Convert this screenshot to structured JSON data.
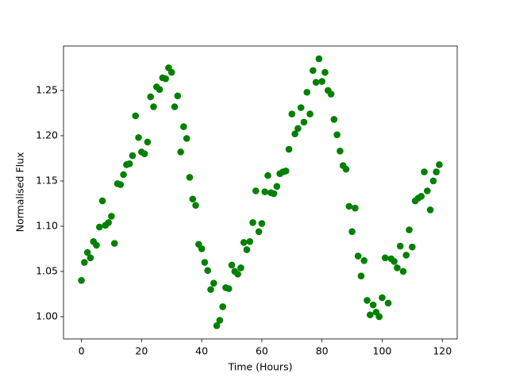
{
  "chart_data": {
    "type": "scatter",
    "x_label": "Time (Hours)",
    "y_label": "Normalised Flux",
    "x": [
      0,
      1,
      2,
      3,
      4,
      5,
      6,
      7,
      8,
      9,
      10,
      11,
      12,
      13,
      14,
      15,
      16,
      17,
      18,
      19,
      20,
      21,
      22,
      23,
      24,
      25,
      26,
      27,
      28,
      29,
      30,
      31,
      32,
      33,
      34,
      35,
      36,
      37,
      38,
      39,
      40,
      41,
      42,
      43,
      44,
      45,
      46,
      47,
      48,
      49,
      50,
      51,
      52,
      53,
      54,
      55,
      56,
      57,
      58,
      59,
      60,
      61,
      62,
      63,
      64,
      65,
      66,
      67,
      68,
      69,
      70,
      71,
      72,
      73,
      74,
      75,
      76,
      77,
      78,
      79,
      80,
      81,
      82,
      83,
      84,
      85,
      86,
      87,
      88,
      89,
      90,
      91,
      92,
      93,
      94,
      95,
      96,
      97,
      98,
      99,
      100,
      101,
      102,
      103,
      104,
      105,
      106,
      107,
      108,
      109,
      110,
      111,
      112,
      113,
      114,
      115,
      116,
      117,
      118,
      119
    ],
    "series": [
      {
        "color": "#008000",
        "values": [
          1.04,
          1.06,
          1.071,
          1.065,
          1.083,
          1.079,
          1.099,
          1.128,
          1.101,
          1.104,
          1.111,
          1.081,
          1.147,
          1.146,
          1.157,
          1.168,
          1.169,
          1.178,
          1.222,
          1.198,
          1.182,
          1.18,
          1.193,
          1.243,
          1.232,
          1.254,
          1.251,
          1.264,
          1.263,
          1.275,
          1.27,
          1.232,
          1.244,
          1.182,
          1.21,
          1.197,
          1.154,
          1.13,
          1.123,
          1.08,
          1.075,
          1.06,
          1.051,
          1.03,
          1.037,
          0.99,
          0.996,
          1.011,
          1.032,
          1.031,
          1.057,
          1.05,
          1.047,
          1.054,
          1.082,
          1.074,
          1.083,
          1.104,
          1.139,
          1.094,
          1.103,
          1.138,
          1.156,
          1.137,
          1.136,
          1.144,
          1.158,
          1.16,
          1.161,
          1.185,
          1.224,
          1.202,
          1.208,
          1.231,
          1.215,
          1.248,
          1.224,
          1.272,
          1.259,
          1.285,
          1.26,
          1.27,
          1.25,
          1.246,
          1.218,
          1.201,
          1.183,
          1.167,
          1.163,
          1.122,
          1.094,
          1.12,
          1.067,
          1.045,
          1.062,
          1.018,
          1.002,
          1.013,
          1.005,
          1.0,
          1.021,
          1.065,
          1.015,
          1.064,
          1.061,
          1.054,
          1.078,
          1.05,
          1.068,
          1.096,
          1.077,
          1.128,
          1.131,
          1.133,
          1.16,
          1.139,
          1.118,
          1.15,
          1.16,
          1.168
        ]
      }
    ],
    "xlim": [
      -5.95,
      124.95
    ],
    "ylim": [
      0.9754,
      1.2991
    ],
    "xticks": [
      0,
      20,
      40,
      60,
      80,
      100,
      120
    ],
    "yticks": [
      {
        "value": 1,
        "label": "1.00"
      },
      1.05,
      {
        "value": 1.1,
        "label": "1.10"
      },
      1.15,
      {
        "value": 1.2,
        "label": "1.20"
      },
      1.25
    ]
  }
}
